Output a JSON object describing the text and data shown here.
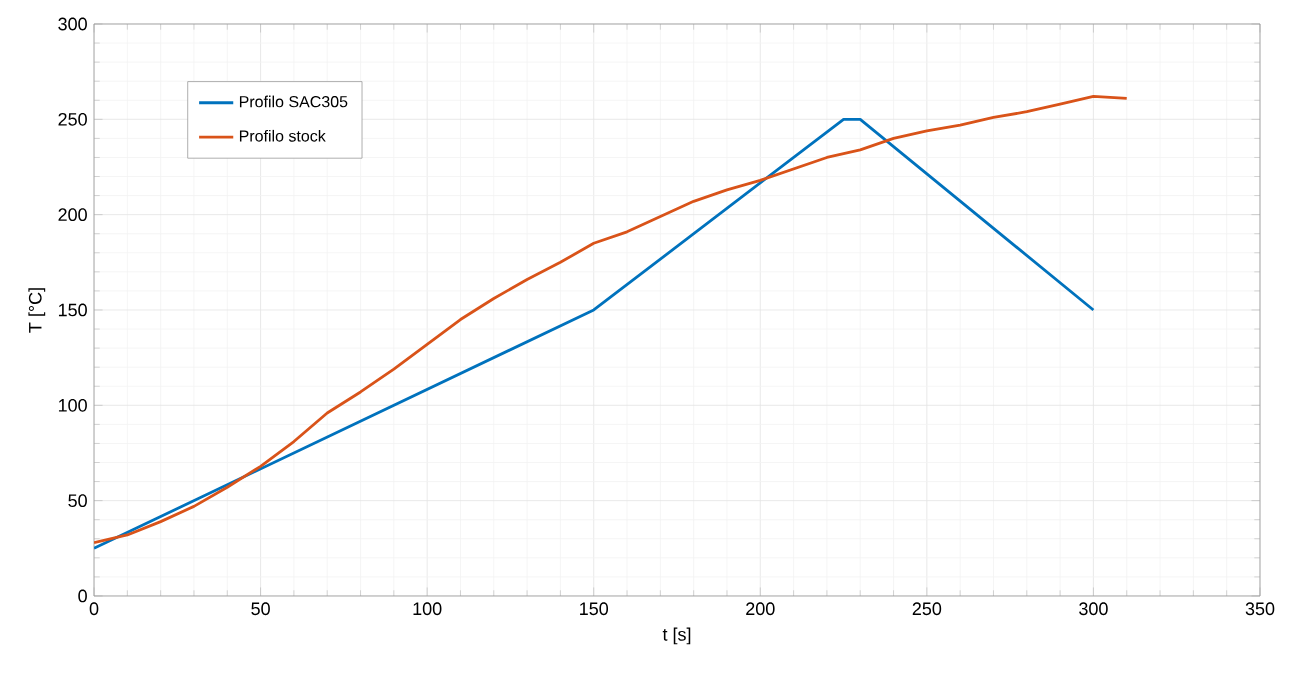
{
  "chart_data": {
    "type": "line",
    "xlabel": "t [s]",
    "ylabel": "T [°C]",
    "xlim": [
      0,
      350
    ],
    "ylim": [
      0,
      300
    ],
    "xticks": [
      0,
      50,
      100,
      150,
      200,
      250,
      300,
      350
    ],
    "yticks": [
      0,
      50,
      100,
      150,
      200,
      250,
      300
    ],
    "grid": true,
    "legend": "top left",
    "line_style": "solid",
    "marker": "none",
    "series": [
      {
        "name": "Profilo SAC305",
        "color": "#0072bd",
        "x": [
          0,
          150,
          225,
          230,
          300
        ],
        "values": [
          25,
          150,
          250,
          250,
          150
        ]
      },
      {
        "name": "Profilo stock",
        "color": "#d95319",
        "x": [
          0,
          10,
          20,
          30,
          40,
          50,
          60,
          70,
          80,
          90,
          100,
          110,
          120,
          130,
          140,
          150,
          160,
          170,
          180,
          190,
          200,
          210,
          220,
          230,
          240,
          250,
          260,
          270,
          280,
          290,
          300,
          310
        ],
        "values": [
          28,
          32,
          39,
          47,
          57,
          68,
          81,
          96,
          107,
          119,
          132,
          145,
          156,
          166,
          175,
          185,
          191,
          199,
          207,
          213,
          218,
          224,
          230,
          234,
          240,
          244,
          247,
          251,
          254,
          258,
          262,
          261
        ]
      }
    ]
  }
}
